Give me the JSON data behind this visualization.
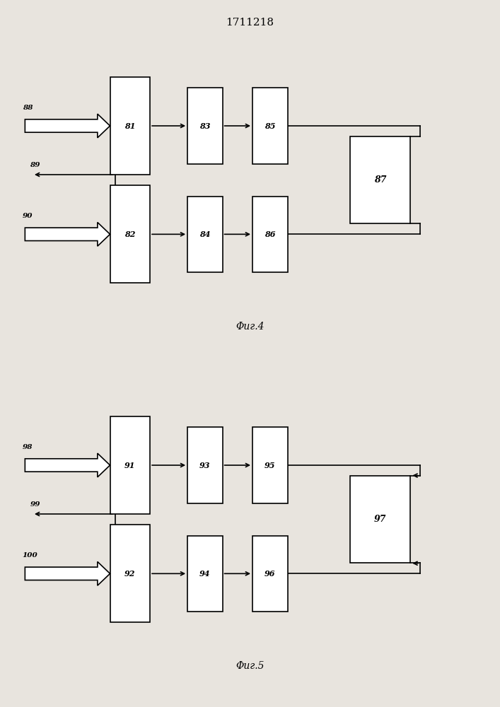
{
  "title": "1711218",
  "bg_color": "#e8e4de",
  "fig4_label": "Φиг.4",
  "fig5_label": "Φиг.5",
  "fig4": {
    "row1_ids": [
      "81",
      "83",
      "85"
    ],
    "row2_ids": [
      "82",
      "84",
      "86"
    ],
    "right_id": "87",
    "in1_label": "88",
    "in2_label": "90",
    "out_label": "89"
  },
  "fig5": {
    "row1_ids": [
      "91",
      "93",
      "95"
    ],
    "row2_ids": [
      "92",
      "94",
      "96"
    ],
    "right_id": "97",
    "in1_label": "98",
    "in2_label": "100",
    "out_label": "99"
  }
}
